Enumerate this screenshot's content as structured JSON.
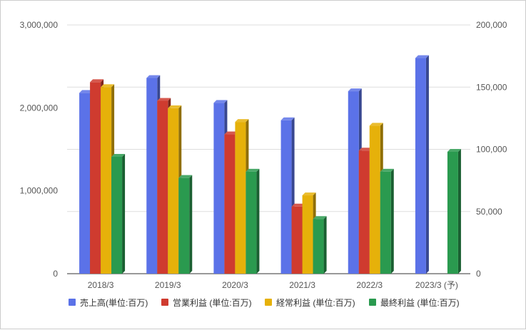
{
  "chart_data": {
    "type": "bar",
    "categories": [
      "2018/3",
      "2019/3",
      "2020/3",
      "2021/3",
      "2022/3",
      "2023/3 (予)"
    ],
    "series": [
      {
        "name": "売上高(単位:百万)",
        "axis": "left",
        "color": "#5b72e8",
        "values": [
          2180000,
          2360000,
          2060000,
          1850000,
          2200000,
          2600000
        ]
      },
      {
        "name": "営業利益 (単位:百万)",
        "axis": "right",
        "color": "#cf3b2f",
        "values": [
          154000,
          139000,
          112000,
          54000,
          99000,
          null
        ]
      },
      {
        "name": "経常利益 (単位:百万)",
        "axis": "right",
        "color": "#e6b10a",
        "values": [
          150000,
          133000,
          122000,
          63000,
          119000,
          null
        ]
      },
      {
        "name": "最終利益 (単位:百万)",
        "axis": "right",
        "color": "#2a9a4f",
        "values": [
          94000,
          77000,
          82000,
          44000,
          82000,
          98000
        ]
      }
    ],
    "yleft": {
      "min": 0,
      "max": 3000000,
      "ticks": [
        "0",
        "1,000,000",
        "2,000,000",
        "3,000,000"
      ]
    },
    "yright": {
      "min": 0,
      "max": 200000,
      "ticks": [
        "0",
        "50,000",
        "100,000",
        "150,000",
        "200,000"
      ]
    },
    "grid": true,
    "legend_position": "bottom",
    "style": "3d-bars"
  }
}
